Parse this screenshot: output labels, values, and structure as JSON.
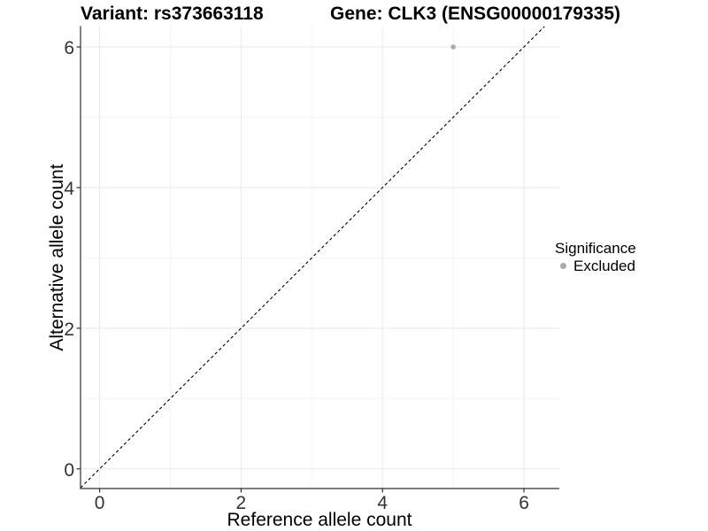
{
  "header": {
    "variant_title": "Variant: rs373663118",
    "gene_title": "Gene: CLK3 (ENSG00000179335)"
  },
  "chart_data": {
    "type": "scatter",
    "titles": [
      "Variant: rs373663118",
      "Gene: CLK3 (ENSG00000179335)"
    ],
    "xlabel": "Reference allele count",
    "ylabel": "Alternative allele count",
    "xlim": [
      -0.27,
      6.5
    ],
    "ylim": [
      -0.28,
      6.29
    ],
    "x_ticks": [
      0,
      2,
      4,
      6
    ],
    "y_ticks": [
      0,
      2,
      4,
      6
    ],
    "x_tick_labels": [
      "0",
      "2",
      "4",
      "6"
    ],
    "y_tick_labels": [
      "0",
      "2",
      "4",
      "6"
    ],
    "x_minor_ticks": [
      1,
      3,
      5
    ],
    "y_minor_ticks": [
      1,
      3,
      5
    ],
    "grid": "major and minor, light gray on white",
    "reference_line": {
      "type": "identity y=x",
      "style": "dashed",
      "color": "#000000",
      "x1": -0.27,
      "y1": -0.27,
      "x2": 6.29,
      "y2": 6.29
    },
    "series": [
      {
        "name": "Excluded",
        "color": "#aaaaaa",
        "points": [
          {
            "x": 5,
            "y": 6
          }
        ]
      }
    ],
    "legend": {
      "title": "Significance",
      "position": "right",
      "items": [
        {
          "label": "Excluded",
          "color": "#aaaaaa",
          "marker": "circle"
        }
      ]
    }
  },
  "colors": {
    "background": "#ffffff",
    "grid_major": "#e9e9e9",
    "grid_minor": "#f4f4f4",
    "axis": "#2f2f2f",
    "tick_label": "#333333",
    "title": "#000000",
    "point": "#aaaaaa"
  }
}
